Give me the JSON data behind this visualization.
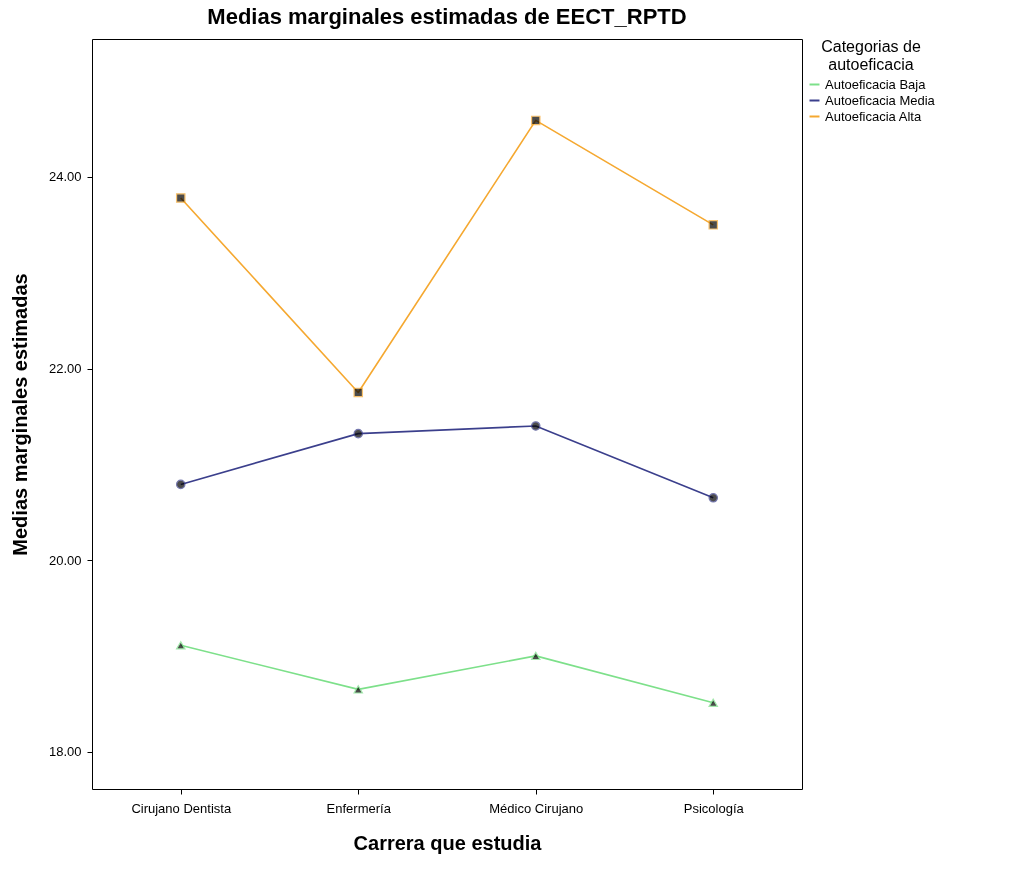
{
  "chart_data": {
    "type": "line",
    "title": "Medias marginales estimadas de EECT_RPTD",
    "xlabel": "Carrera que estudia",
    "ylabel": "Medias marginales estimadas",
    "legend_title": "Categorias de autoeficacia",
    "legend": "top right",
    "grid": false,
    "categories": [
      "Cirujano Dentista",
      "Enfermería",
      "Médico Cirujano",
      "Psicología"
    ],
    "ylim": [
      17.61,
      25.44
    ],
    "yticks": [
      {
        "value": 18,
        "label": "18.00"
      },
      {
        "value": 20,
        "label": "20.00"
      },
      {
        "value": 22,
        "label": "22.00"
      },
      {
        "value": 24,
        "label": "24.00"
      }
    ],
    "series": [
      {
        "name": "Autoeficacia Baja",
        "color": "#7de08a",
        "marker": "triangle",
        "values": [
          19.11,
          18.65,
          19.0,
          18.51
        ]
      },
      {
        "name": "Autoeficacia Media",
        "color": "#3b3f8c",
        "marker": "circle",
        "values": [
          20.79,
          21.32,
          21.4,
          20.65
        ]
      },
      {
        "name": "Autoeficacia Alta",
        "color": "#f5a830",
        "marker": "square",
        "values": [
          23.78,
          21.75,
          24.59,
          23.5
        ]
      }
    ]
  }
}
